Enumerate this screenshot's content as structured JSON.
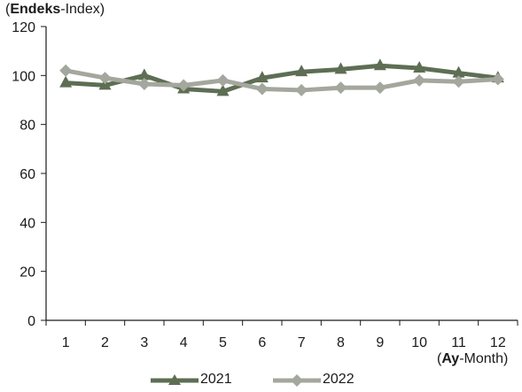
{
  "chart_data": {
    "type": "line",
    "title": "",
    "ylabel_bold": "Endeks",
    "ylabel_rest": "-Index",
    "xlabel_bold": "Ay",
    "xlabel_rest": "-Month",
    "ylim": [
      0,
      120
    ],
    "yticks": [
      "0",
      "20",
      "40",
      "60",
      "80",
      "100",
      "120"
    ],
    "categories": [
      "1",
      "2",
      "3",
      "4",
      "5",
      "6",
      "7",
      "8",
      "9",
      "10",
      "11",
      "12"
    ],
    "grid": false,
    "legend_position": "bottom",
    "series": [
      {
        "name": "2021",
        "color": "#5e6e54",
        "marker": "triangle",
        "values": [
          97,
          96,
          100,
          94.5,
          93.5,
          99,
          101.5,
          102.5,
          104,
          103,
          101,
          99
        ]
      },
      {
        "name": "2022",
        "color": "#a4a79d",
        "marker": "diamond",
        "values": [
          102,
          99,
          96.5,
          96,
          98,
          94.5,
          94,
          95,
          95,
          98,
          97.5,
          98.5
        ]
      }
    ]
  }
}
